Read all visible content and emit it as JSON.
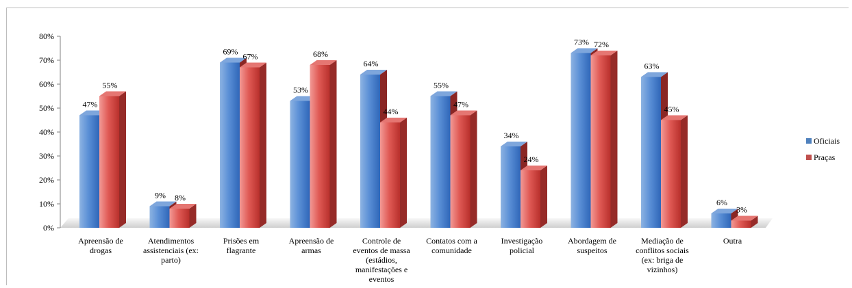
{
  "chart_data": {
    "type": "bar",
    "title": "",
    "xlabel": "",
    "ylabel": "",
    "ylim": [
      0,
      80
    ],
    "y_ticks": [
      "0%",
      "10%",
      "20%",
      "30%",
      "40%",
      "50%",
      "60%",
      "70%",
      "80%"
    ],
    "grid": false,
    "legend_position": "right",
    "categories": [
      [
        "Apreensão de",
        "drogas"
      ],
      [
        "Atendimentos",
        "assistenciais (ex:",
        "parto)"
      ],
      [
        "Prisões em",
        "flagrante"
      ],
      [
        "Apreensão de",
        "armas"
      ],
      [
        "Controle de",
        "eventos de massa",
        "(estádios,",
        "manifestações e",
        "eventos"
      ],
      [
        "Contatos com a",
        "comunidade"
      ],
      [
        "Investigação",
        "policial"
      ],
      [
        "Abordagem de",
        "suspeitos"
      ],
      [
        "Mediação de",
        "conflitos sociais",
        "(ex: briga de",
        "vizinhos)"
      ],
      [
        "Outra"
      ]
    ],
    "series": [
      {
        "name": "Oficiais",
        "color": "#4f81bd",
        "values": [
          47,
          9,
          69,
          53,
          64,
          55,
          34,
          73,
          63,
          6
        ],
        "labels": [
          "47%",
          "9%",
          "69%",
          "53%",
          "64%",
          "55%",
          "34%",
          "73%",
          "63%",
          "6%"
        ]
      },
      {
        "name": "Praças",
        "color": "#c0504d",
        "values": [
          55,
          8,
          67,
          68,
          44,
          47,
          24,
          72,
          45,
          3
        ],
        "labels": [
          "55%",
          "8%",
          "67%",
          "68%",
          "44%",
          "47%",
          "24%",
          "72%",
          "45%",
          "3%"
        ]
      }
    ]
  }
}
